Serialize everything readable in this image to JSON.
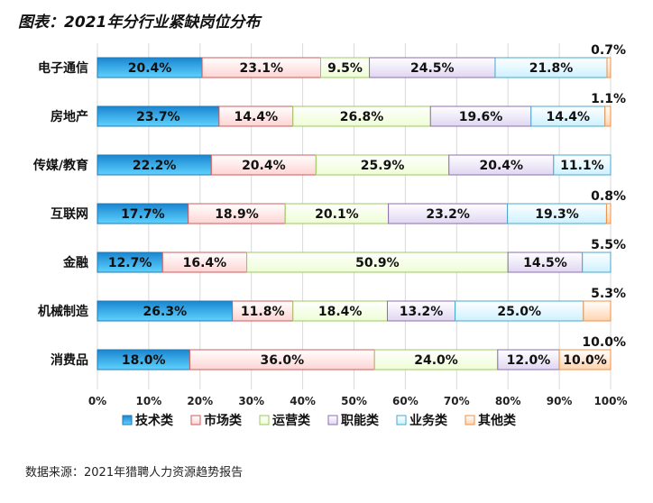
{
  "chart_data": {
    "type": "bar",
    "stacked": true,
    "orientation": "horizontal",
    "title": "图表：2021年分行业紧缺岗位分布",
    "source": "数据来源：2021年猎聘人力资源趋势报告",
    "categories": [
      "电子通信",
      "房地产",
      "传媒/教育",
      "互联网",
      "金融",
      "机械制造",
      "消费品"
    ],
    "series": [
      {
        "name": "技术类",
        "color": "#2a9be0",
        "border": "#1f78b4",
        "values": [
          20.4,
          23.7,
          22.2,
          17.7,
          12.7,
          26.3,
          18.0
        ]
      },
      {
        "name": "市场类",
        "color": "#ffd3d3",
        "border": "#d05a5a",
        "values": [
          23.1,
          14.4,
          20.4,
          18.9,
          16.4,
          11.8,
          36.0
        ]
      },
      {
        "name": "运营类",
        "color": "#eefdd4",
        "border": "#9cc860",
        "values": [
          9.5,
          26.8,
          25.9,
          20.1,
          50.9,
          18.4,
          24.0
        ]
      },
      {
        "name": "职能类",
        "color": "#e0d6f2",
        "border": "#8c6cb4",
        "values": [
          24.5,
          19.6,
          20.4,
          23.2,
          14.5,
          13.2,
          12.0
        ]
      },
      {
        "name": "业务类",
        "color": "#cdf1ff",
        "border": "#45a9d2",
        "values": [
          21.8,
          14.4,
          11.1,
          19.3,
          5.5,
          25.0,
          0
        ]
      },
      {
        "name": "其他类",
        "color": "#ffd3ae",
        "border": "#ef9045",
        "values": [
          0.7,
          1.1,
          0,
          0.8,
          0,
          5.3,
          10.0
        ]
      }
    ],
    "outside_labels": [
      "0.7%",
      "1.1%",
      "",
      "0.8%",
      "5.5%",
      "5.3%",
      "10.0%"
    ],
    "xlim": [
      0,
      100
    ],
    "xticks": [
      "0%",
      "10%",
      "20%",
      "30%",
      "40%",
      "50%",
      "60%",
      "70%",
      "80%",
      "90%",
      "100%"
    ],
    "grid": true,
    "legend": "bottom"
  }
}
